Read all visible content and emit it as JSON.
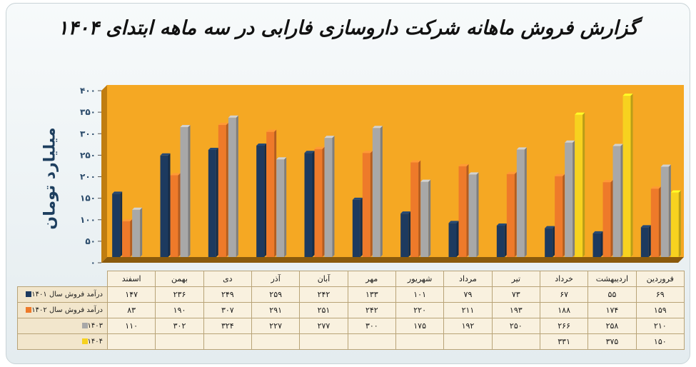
{
  "chart_data": {
    "type": "bar",
    "title": "گزارش فروش ماهانه شرکت داروسازی فارابی در سه ماهه ابتدای ۱۴۰۴",
    "ylabel": "میلیارد تومان",
    "ylim": [
      0,
      400
    ],
    "y_ticks": [
      "۰",
      "۵۰",
      "۱۰۰",
      "۱۵۰",
      "۲۰۰",
      "۲۵۰",
      "۳۰۰",
      "۳۵۰",
      "۴۰۰"
    ],
    "categories": [
      "اسفند",
      "بهمن",
      "دی",
      "آذر",
      "آبان",
      "مهر",
      "شهریور",
      "مرداد",
      "تیر",
      "خرداد",
      "اردیبهشت",
      "فروردین"
    ],
    "series": [
      {
        "name": "درآمد فروش سال ۱۴۰۱",
        "color": "#1d3a5f",
        "values": [
          147,
          236,
          249,
          259,
          242,
          133,
          101,
          79,
          73,
          67,
          55,
          69
        ],
        "labels": [
          "۱۴۷",
          "۲۳۶",
          "۲۴۹",
          "۲۵۹",
          "۲۴۲",
          "۱۳۳",
          "۱۰۱",
          "۷۹",
          "۷۳",
          "۶۷",
          "۵۵",
          "۶۹"
        ]
      },
      {
        "name": "درآمد فروش سال ۱۴۰۲",
        "color": "#ee7a2a",
        "values": [
          83,
          190,
          307,
          291,
          251,
          242,
          220,
          211,
          193,
          188,
          174,
          159
        ],
        "labels": [
          "۸۳",
          "۱۹۰",
          "۳۰۷",
          "۲۹۱",
          "۲۵۱",
          "۲۴۲",
          "۲۲۰",
          "۲۱۱",
          "۱۹۳",
          "۱۸۸",
          "۱۷۴",
          "۱۵۹"
        ]
      },
      {
        "name": "۱۴۰۳",
        "color": "#a8a8a8",
        "values": [
          110,
          302,
          324,
          227,
          277,
          300,
          175,
          192,
          250,
          266,
          258,
          210
        ],
        "labels": [
          "۱۱۰",
          "۳۰۲",
          "۳۲۴",
          "۲۲۷",
          "۲۷۷",
          "۳۰۰",
          "۱۷۵",
          "۱۹۲",
          "۲۵۰",
          "۲۶۶",
          "۲۵۸",
          "۲۱۰"
        ]
      },
      {
        "name": "۱۴۰۴",
        "color": "#f7d21f",
        "values": [
          null,
          null,
          null,
          null,
          null,
          null,
          null,
          null,
          null,
          331,
          375,
          150
        ],
        "labels": [
          "",
          "",
          "",
          "",
          "",
          "",
          "",
          "",
          "",
          "۳۳۱",
          "۳۷۵",
          "۱۵۰"
        ]
      }
    ],
    "plot_background": "#f5a823",
    "grid": false
  }
}
